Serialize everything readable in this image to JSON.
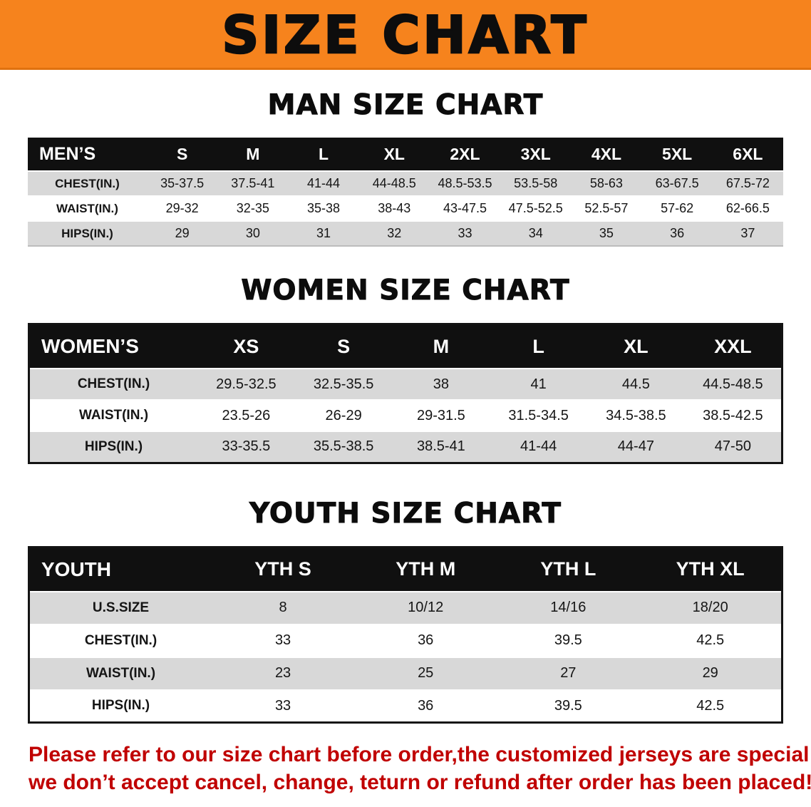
{
  "banner": {
    "title": "SIZE CHART",
    "bg_color": "#f6831d",
    "text_color": "#0d0d0d"
  },
  "tables": {
    "men": {
      "section_title": "MAN SIZE CHART",
      "header": [
        "MEN’S",
        "S",
        "M",
        "L",
        "XL",
        "2XL",
        "3XL",
        "4XL",
        "5XL",
        "6XL"
      ],
      "rows": [
        [
          "CHEST(IN.)",
          "35-37.5",
          "37.5-41",
          "41-44",
          "44-48.5",
          "48.5-53.5",
          "53.5-58",
          "58-63",
          "63-67.5",
          "67.5-72"
        ],
        [
          "WAIST(IN.)",
          "29-32",
          "32-35",
          "35-38",
          "38-43",
          "43-47.5",
          "47.5-52.5",
          "52.5-57",
          "57-62",
          "62-66.5"
        ],
        [
          "HIPS(IN.)",
          "29",
          "30",
          "31",
          "32",
          "33",
          "34",
          "35",
          "36",
          "37"
        ]
      ]
    },
    "women": {
      "section_title": "WOMEN SIZE CHART",
      "header": [
        "WOMEN’S",
        "XS",
        "S",
        "M",
        "L",
        "XL",
        "XXL"
      ],
      "rows": [
        [
          "CHEST(IN.)",
          "29.5-32.5",
          "32.5-35.5",
          "38",
          "41",
          "44.5",
          "44.5-48.5"
        ],
        [
          "WAIST(IN.)",
          "23.5-26",
          "26-29",
          "29-31.5",
          "31.5-34.5",
          "34.5-38.5",
          "38.5-42.5"
        ],
        [
          "HIPS(IN.)",
          "33-35.5",
          "35.5-38.5",
          "38.5-41",
          "41-44",
          "44-47",
          "47-50"
        ]
      ]
    },
    "youth": {
      "section_title": "YOUTH SIZE CHART",
      "header": [
        "YOUTH",
        "YTH S",
        "YTH M",
        "YTH L",
        "YTH XL"
      ],
      "rows": [
        [
          "U.S.SIZE",
          "8",
          "10/12",
          "14/16",
          "18/20"
        ],
        [
          "CHEST(IN.)",
          "33",
          "36",
          "39.5",
          "42.5"
        ],
        [
          "WAIST(IN.)",
          "23",
          "25",
          "27",
          "29"
        ],
        [
          "HIPS(IN.)",
          "33",
          "36",
          "39.5",
          "42.5"
        ]
      ]
    }
  },
  "disclaimer": {
    "line1": "Please refer to our size chart before order,the customized jerseys are special products,",
    "line2": "we don’t accept cancel, change, teturn or refund after order has been placed!",
    "color": "#c00000"
  },
  "units_note": "measurements in inches",
  "stripe_color": "#d8d8d8",
  "header_bar_color": "#101010"
}
